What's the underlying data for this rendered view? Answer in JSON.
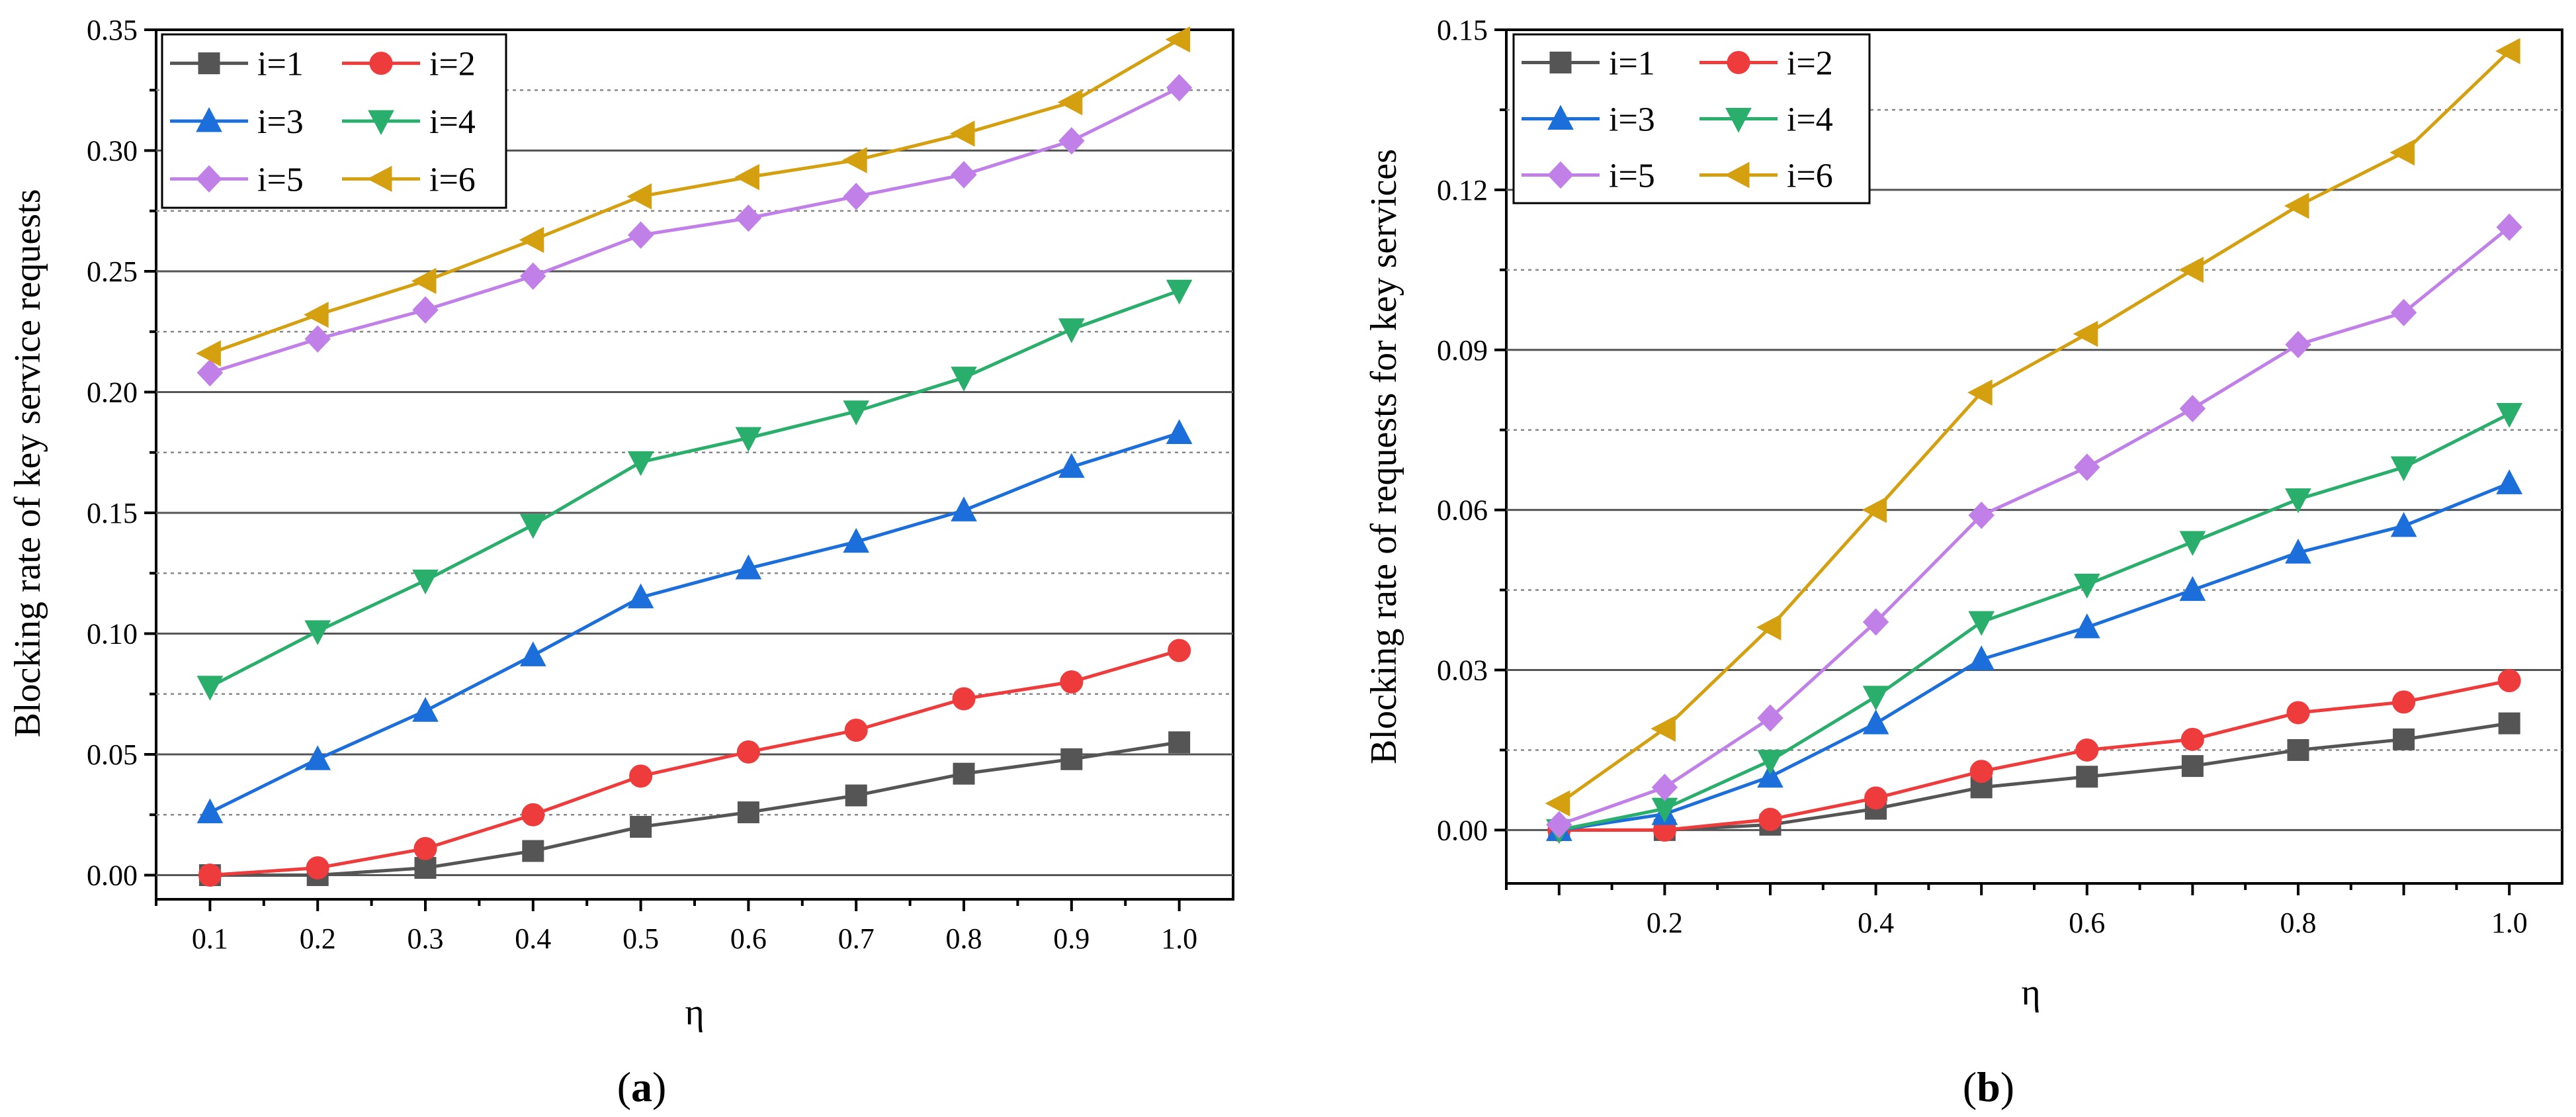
{
  "chart_data": [
    {
      "type": "line",
      "panel_label": "a",
      "xlabel": "η",
      "ylabel": "Blocking rate of key service requests",
      "x": [
        0.1,
        0.2,
        0.3,
        0.4,
        0.5,
        0.6,
        0.7,
        0.8,
        0.9,
        1.0
      ],
      "x_ticks": [
        "0.1",
        "0.2",
        "0.3",
        "0.4",
        "0.5",
        "0.6",
        "0.7",
        "0.8",
        "0.9",
        "1.0"
      ],
      "y_ticks": [
        "0.00",
        "0.05",
        "0.10",
        "0.15",
        "0.20",
        "0.25",
        "0.30",
        "0.35"
      ],
      "xlim": [
        0.05,
        1.05
      ],
      "ylim": [
        -0.01,
        0.35
      ],
      "grid": "major solid, minor dotted (horizontal)",
      "legend_position": "top-left",
      "series": [
        {
          "name": "i=1",
          "color": "#555555",
          "marker": "square",
          "values": [
            0.0,
            0.0,
            0.003,
            0.01,
            0.02,
            0.026,
            0.033,
            0.042,
            0.048,
            0.055
          ]
        },
        {
          "name": "i=2",
          "color": "#ee3b3b",
          "marker": "circle",
          "values": [
            0.0,
            0.003,
            0.011,
            0.025,
            0.041,
            0.051,
            0.06,
            0.073,
            0.08,
            0.093
          ]
        },
        {
          "name": "i=3",
          "color": "#1c6fdb",
          "marker": "triangle-up",
          "values": [
            0.026,
            0.048,
            0.068,
            0.091,
            0.115,
            0.127,
            0.138,
            0.151,
            0.169,
            0.183
          ]
        },
        {
          "name": "i=4",
          "color": "#2aae6b",
          "marker": "triangle-down",
          "values": [
            0.078,
            0.101,
            0.122,
            0.145,
            0.171,
            0.181,
            0.192,
            0.206,
            0.226,
            0.242
          ]
        },
        {
          "name": "i=5",
          "color": "#c080e8",
          "marker": "diamond",
          "values": [
            0.208,
            0.222,
            0.234,
            0.248,
            0.265,
            0.272,
            0.281,
            0.29,
            0.304,
            0.326
          ]
        },
        {
          "name": "i=6",
          "color": "#d4a010",
          "marker": "triangle-left",
          "values": [
            0.216,
            0.232,
            0.246,
            0.263,
            0.281,
            0.289,
            0.296,
            0.307,
            0.32,
            0.346
          ]
        }
      ]
    },
    {
      "type": "line",
      "panel_label": "b",
      "xlabel": "η",
      "ylabel": "Blocking rate of requests for key services",
      "x": [
        0.1,
        0.2,
        0.3,
        0.4,
        0.5,
        0.6,
        0.7,
        0.8,
        0.9,
        1.0
      ],
      "x_ticks": [
        "0.2",
        "0.4",
        "0.6",
        "0.8",
        "1.0"
      ],
      "y_ticks": [
        "0.00",
        "0.03",
        "0.06",
        "0.09",
        "0.12",
        "0.15"
      ],
      "xlim": [
        0.05,
        1.05
      ],
      "ylim": [
        -0.01,
        0.15
      ],
      "grid": "major solid, minor dotted (horizontal)",
      "legend_position": "top-left",
      "series": [
        {
          "name": "i=1",
          "color": "#555555",
          "marker": "square",
          "values": [
            0.0,
            0.0,
            0.001,
            0.004,
            0.008,
            0.01,
            0.012,
            0.015,
            0.017,
            0.02
          ]
        },
        {
          "name": "i=2",
          "color": "#ee3b3b",
          "marker": "circle",
          "values": [
            0.0,
            0.0,
            0.002,
            0.006,
            0.011,
            0.015,
            0.017,
            0.022,
            0.024,
            0.028
          ]
        },
        {
          "name": "i=3",
          "color": "#1c6fdb",
          "marker": "triangle-up",
          "values": [
            0.0,
            0.003,
            0.01,
            0.02,
            0.032,
            0.038,
            0.045,
            0.052,
            0.057,
            0.065
          ]
        },
        {
          "name": "i=4",
          "color": "#2aae6b",
          "marker": "triangle-down",
          "values": [
            0.0,
            0.004,
            0.013,
            0.025,
            0.039,
            0.046,
            0.054,
            0.062,
            0.068,
            0.078
          ]
        },
        {
          "name": "i=5",
          "color": "#c080e8",
          "marker": "diamond",
          "values": [
            0.001,
            0.008,
            0.021,
            0.039,
            0.059,
            0.068,
            0.079,
            0.091,
            0.097,
            0.113
          ]
        },
        {
          "name": "i=6",
          "color": "#d4a010",
          "marker": "triangle-left",
          "values": [
            0.005,
            0.019,
            0.038,
            0.06,
            0.082,
            0.093,
            0.105,
            0.117,
            0.127,
            0.146
          ]
        }
      ]
    }
  ]
}
